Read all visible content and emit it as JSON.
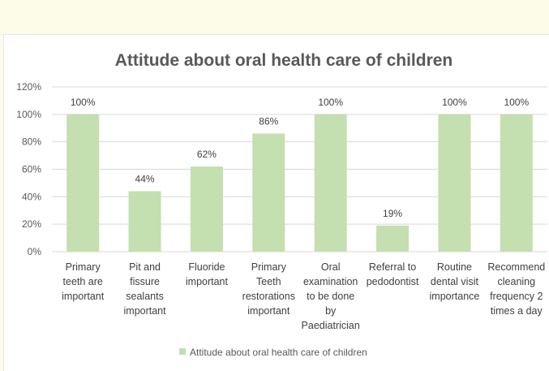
{
  "chart_data": {
    "type": "bar",
    "title": "Attitude about oral health care of children",
    "categories": [
      "Primary teeth are important",
      "Pit and fissure sealants important",
      "Fluoride important",
      "Primary Teeth restorations important",
      "Oral examination to be done by Paediatrician",
      "Referral to pedodontist",
      "Routine dental visit importance",
      "Recommend cleaning frequency 2 times a day"
    ],
    "category_lines": [
      [
        "Primary",
        "teeth are",
        "important"
      ],
      [
        "Pit and",
        "fissure",
        "sealants",
        "important"
      ],
      [
        "Fluoride",
        "important"
      ],
      [
        "Primary",
        "Teeth",
        "restorations",
        "important"
      ],
      [
        "Oral",
        "examination",
        "to be done",
        "by",
        "Paediatrician"
      ],
      [
        "Referral to",
        "pedodontist"
      ],
      [
        "Routine",
        "dental visit",
        "importance"
      ],
      [
        "Recommend",
        "cleaning",
        "frequency 2",
        "times a day"
      ]
    ],
    "series": [
      {
        "name": "Attitude about oral health care of children",
        "values": [
          100,
          44,
          62,
          86,
          100,
          19,
          100,
          100
        ],
        "data_labels": [
          "100%",
          "44%",
          "62%",
          "86%",
          "100%",
          "19%",
          "100%",
          "100%"
        ]
      }
    ],
    "yticks": [
      "0%",
      "20%",
      "40%",
      "60%",
      "80%",
      "100%",
      "120%"
    ],
    "ylim": [
      0,
      120
    ],
    "grid": true,
    "legend_position": "bottom",
    "bar_color": "#c4dfb0",
    "grid_color": "#d9d9d9"
  }
}
